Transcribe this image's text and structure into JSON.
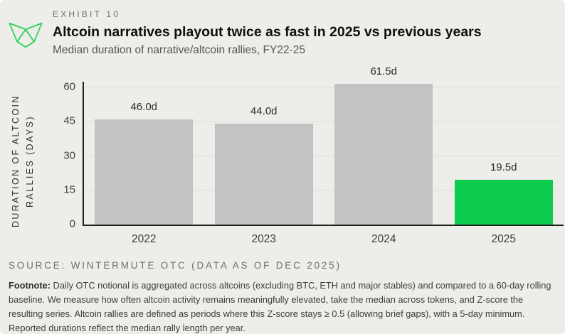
{
  "header": {
    "exhibit": "EXHIBIT 10",
    "title": "Altcoin narratives playout twice as fast in 2025 vs previous years",
    "subtitle": "Median duration of narrative/altcoin rallies, FY22-25"
  },
  "chart_data": {
    "type": "bar",
    "title": "Altcoin narratives playout twice as fast in 2025 vs previous years",
    "subtitle": "Median duration of narrative/altcoin rallies, FY22-25",
    "categories": [
      "2022",
      "2023",
      "2024",
      "2025"
    ],
    "values": [
      46.0,
      44.0,
      61.5,
      19.5
    ],
    "value_labels": [
      "46.0d",
      "44.0d",
      "61.5d",
      "19.5d"
    ],
    "bar_colors": [
      "#c1c4c2",
      "#c1c4c2",
      "#c1c4c2",
      "#0dcb4d"
    ],
    "xlabel": "",
    "ylabel": "DURATION OF ALTCOIN\nRALLIES (DAYS)",
    "yticks": [
      0,
      15,
      30,
      45,
      60
    ],
    "ylim": [
      0,
      60
    ],
    "grid": true,
    "legend": false
  },
  "footer": {
    "source": "SOURCE: WINTERMUTE OTC (DATA AS OF DEC 2025)",
    "footnote_label": "Footnote:",
    "footnote_text": " Daily OTC notional is aggregated across altcoins (excluding BTC, ETH and major stables) and compared to a 60-day rolling baseline. We measure how often altcoin activity remains meaningfully elevated, take the median across tokens, and Z-score the resulting series. Altcoin rallies are defined as periods where this Z-score stays ≥ 0.5 (allowing brief gaps), with a 5-day minimum. Reported durations reflect the median rally length per year."
  },
  "icons": {
    "logo": "wintermute-logo"
  },
  "colors": {
    "background": "#ededea",
    "bar_gray": "#c1c4c2",
    "bar_green": "#0dcb4d",
    "logo_green": "#2fd35d",
    "axis": "#1f1f1f",
    "gridline": "#dcdedb"
  }
}
